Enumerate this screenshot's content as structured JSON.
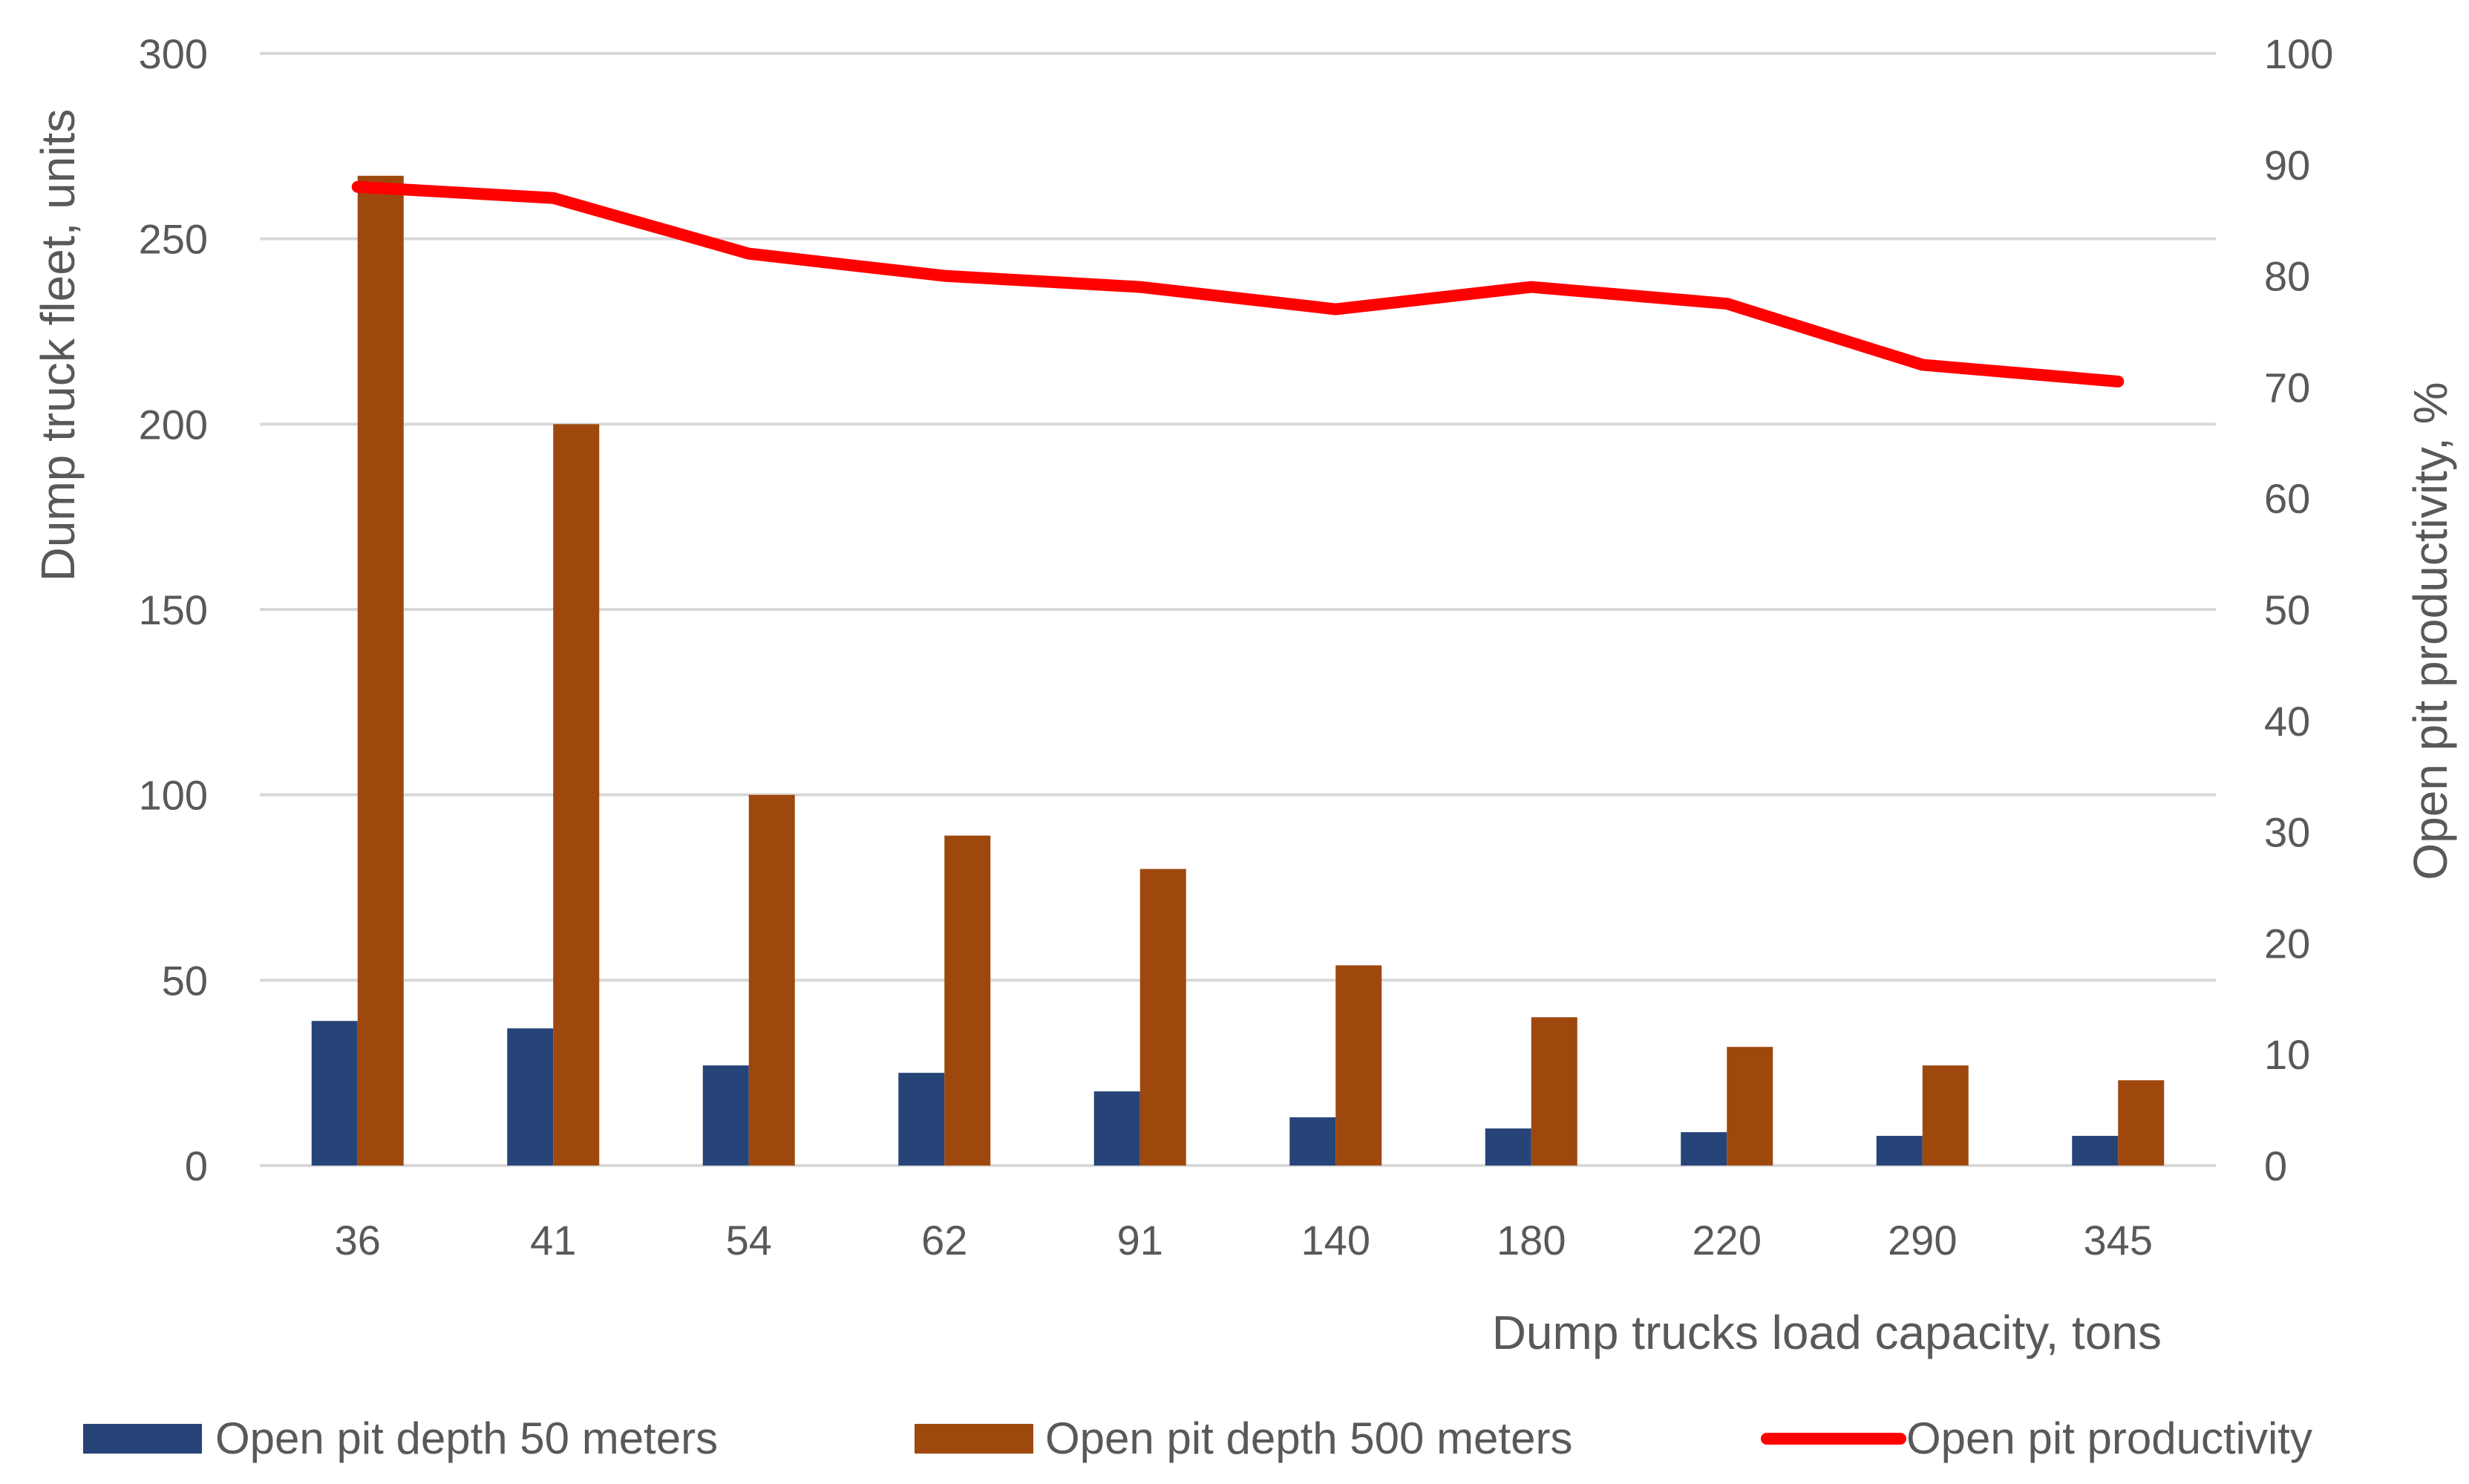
{
  "chart_data": {
    "type": "bar",
    "categories": [
      "36",
      "41",
      "54",
      "62",
      "91",
      "140",
      "180",
      "220",
      "290",
      "345"
    ],
    "series": [
      {
        "name": "Open pit depth 50 meters",
        "type": "bar",
        "axis": "left",
        "color": "#264478",
        "values": [
          39,
          37,
          27,
          25,
          20,
          13,
          10,
          9,
          8,
          8
        ]
      },
      {
        "name": "Open pit depth 500 meters",
        "type": "bar",
        "axis": "left",
        "color": "#9E480E",
        "values": [
          267,
          200,
          100,
          89,
          80,
          54,
          40,
          32,
          27,
          23
        ]
      },
      {
        "name": "Open pit productivity",
        "type": "line",
        "axis": "right",
        "color": "#FF0000",
        "values": [
          88,
          87,
          82,
          80,
          79,
          77,
          79,
          77.5,
          72,
          70.5
        ]
      }
    ],
    "xlabel": "Dump trucks load capacity, tons",
    "ylabel": "Dump truck fleet, units",
    "y2label": "Open pit productivity, %",
    "ylim": [
      0,
      300
    ],
    "y2lim": [
      0,
      100
    ],
    "yticks": [
      "0",
      "50",
      "100",
      "150",
      "200",
      "250",
      "300"
    ],
    "y2ticks": [
      "0",
      "10",
      "20",
      "30",
      "40",
      "50",
      "60",
      "70",
      "80",
      "90",
      "100"
    ],
    "grid": true,
    "legend": "bottom"
  },
  "colors": {
    "gridline": "#D9D9D9",
    "text": "#595959"
  }
}
